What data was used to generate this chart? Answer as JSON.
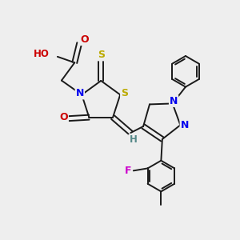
{
  "bg_color": "#eeeeee",
  "bond_color": "#1a1a1a",
  "bond_width": 1.4,
  "atom_colors": {
    "O": "#cc0000",
    "N": "#0000ee",
    "S": "#bbaa00",
    "F": "#cc00cc",
    "H": "#558888",
    "C": "#1a1a1a"
  },
  "figsize": [
    3.0,
    3.0
  ],
  "dpi": 100,
  "xlim": [
    0,
    10
  ],
  "ylim": [
    0,
    10
  ]
}
